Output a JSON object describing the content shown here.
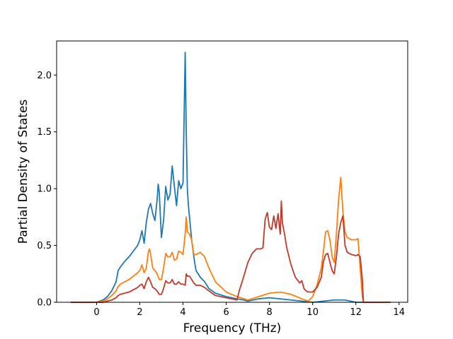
{
  "chart_data": {
    "type": "line",
    "xlabel": "Frequency (THz)",
    "ylabel": "Partial Density of States",
    "xlim": [
      -1.85,
      14.4
    ],
    "ylim": [
      0,
      2.3
    ],
    "xticks": [
      0,
      2,
      4,
      6,
      8,
      10,
      12,
      14
    ],
    "yticks": [
      0.0,
      0.5,
      1.0,
      1.5,
      2.0
    ],
    "ytick_labels": [
      "0.0",
      "0.5",
      "1.0",
      "1.5",
      "2.0"
    ],
    "grid": false,
    "legend": "none",
    "series": [
      {
        "color": "#1f77b4",
        "x": [
          -1.2,
          0.0,
          0.3,
          0.5,
          0.7,
          0.9,
          1.0,
          1.1,
          1.3,
          1.5,
          1.7,
          1.9,
          2.0,
          2.1,
          2.2,
          2.3,
          2.4,
          2.5,
          2.6,
          2.7,
          2.8,
          2.85,
          2.9,
          3.0,
          3.1,
          3.2,
          3.3,
          3.4,
          3.5,
          3.6,
          3.7,
          3.8,
          3.9,
          4.0,
          4.1,
          4.15,
          4.2,
          4.25,
          4.3,
          4.4,
          4.5,
          4.6,
          4.7,
          4.8,
          5.0,
          5.2,
          5.5,
          6.0,
          6.5,
          6.8,
          7.0,
          7.5,
          8.0,
          8.5,
          9.0,
          9.5,
          10.0,
          10.5,
          11.0,
          11.5,
          12.0,
          12.3,
          13.6
        ],
        "y": [
          0.0,
          0.0,
          0.02,
          0.05,
          0.1,
          0.18,
          0.28,
          0.31,
          0.36,
          0.4,
          0.45,
          0.5,
          0.55,
          0.63,
          0.52,
          0.7,
          0.82,
          0.87,
          0.78,
          0.72,
          0.9,
          1.04,
          0.97,
          0.57,
          0.72,
          1.02,
          0.9,
          0.95,
          1.2,
          1.02,
          0.85,
          1.07,
          1.0,
          1.05,
          2.2,
          1.5,
          1.0,
          0.85,
          0.75,
          0.55,
          0.4,
          0.28,
          0.25,
          0.22,
          0.18,
          0.12,
          0.08,
          0.05,
          0.03,
          0.02,
          0.01,
          0.03,
          0.04,
          0.03,
          0.02,
          0.01,
          0.0,
          0.01,
          0.02,
          0.02,
          0.0,
          0.0,
          0.0
        ]
      },
      {
        "color": "#ff7f0e",
        "x": [
          -1.2,
          0.0,
          0.3,
          0.5,
          0.7,
          0.9,
          1.0,
          1.1,
          1.3,
          1.5,
          1.7,
          1.9,
          2.0,
          2.1,
          2.2,
          2.3,
          2.4,
          2.45,
          2.5,
          2.6,
          2.7,
          2.8,
          2.9,
          3.0,
          3.1,
          3.2,
          3.3,
          3.4,
          3.5,
          3.6,
          3.7,
          3.8,
          3.9,
          4.0,
          4.1,
          4.15,
          4.2,
          4.3,
          4.4,
          4.5,
          4.6,
          4.7,
          4.8,
          5.0,
          5.2,
          5.5,
          6.0,
          6.5,
          7.0,
          7.5,
          8.0,
          8.5,
          9.0,
          9.5,
          9.8,
          10.0,
          10.2,
          10.4,
          10.5,
          10.6,
          10.7,
          10.8,
          10.9,
          11.0,
          11.1,
          11.2,
          11.3,
          11.4,
          11.5,
          11.6,
          11.7,
          11.8,
          12.0,
          12.1,
          12.2,
          12.3,
          12.35,
          13.6
        ],
        "y": [
          0.0,
          0.0,
          0.01,
          0.03,
          0.06,
          0.1,
          0.14,
          0.16,
          0.18,
          0.2,
          0.23,
          0.26,
          0.28,
          0.33,
          0.26,
          0.3,
          0.45,
          0.47,
          0.42,
          0.3,
          0.28,
          0.25,
          0.2,
          0.2,
          0.3,
          0.43,
          0.4,
          0.4,
          0.44,
          0.37,
          0.38,
          0.45,
          0.44,
          0.42,
          0.6,
          0.75,
          0.62,
          0.6,
          0.55,
          0.42,
          0.42,
          0.43,
          0.44,
          0.4,
          0.3,
          0.18,
          0.09,
          0.05,
          0.02,
          0.05,
          0.08,
          0.09,
          0.07,
          0.03,
          0.01,
          0.05,
          0.15,
          0.3,
          0.45,
          0.62,
          0.63,
          0.55,
          0.4,
          0.35,
          0.6,
          0.9,
          1.1,
          0.8,
          0.62,
          0.57,
          0.56,
          0.55,
          0.55,
          0.56,
          0.3,
          0.05,
          0.0,
          0.0
        ]
      },
      {
        "color": "#c0392b",
        "x": [
          -1.2,
          0.0,
          0.3,
          0.5,
          0.7,
          0.9,
          1.0,
          1.1,
          1.3,
          1.5,
          1.7,
          1.9,
          2.0,
          2.1,
          2.2,
          2.3,
          2.4,
          2.5,
          2.6,
          2.7,
          2.8,
          2.9,
          3.0,
          3.1,
          3.2,
          3.3,
          3.4,
          3.5,
          3.6,
          3.7,
          3.8,
          3.9,
          4.0,
          4.1,
          4.15,
          4.2,
          4.3,
          4.4,
          4.5,
          4.6,
          4.7,
          4.8,
          5.0,
          5.2,
          5.5,
          6.0,
          6.5,
          6.6,
          6.8,
          7.0,
          7.2,
          7.4,
          7.6,
          7.7,
          7.8,
          7.9,
          8.0,
          8.1,
          8.2,
          8.3,
          8.4,
          8.5,
          8.55,
          8.6,
          8.7,
          8.8,
          9.0,
          9.2,
          9.4,
          9.5,
          9.6,
          9.7,
          9.8,
          10.0,
          10.2,
          10.4,
          10.5,
          10.6,
          10.7,
          10.8,
          10.9,
          11.0,
          11.1,
          11.2,
          11.3,
          11.4,
          11.5,
          11.6,
          11.8,
          12.0,
          12.1,
          12.2,
          12.3,
          12.35,
          13.6
        ],
        "y": [
          0.0,
          0.0,
          0.0,
          0.01,
          0.02,
          0.04,
          0.06,
          0.07,
          0.08,
          0.09,
          0.11,
          0.13,
          0.15,
          0.16,
          0.12,
          0.18,
          0.22,
          0.18,
          0.13,
          0.12,
          0.1,
          0.07,
          0.07,
          0.12,
          0.19,
          0.17,
          0.17,
          0.2,
          0.16,
          0.16,
          0.18,
          0.16,
          0.16,
          0.15,
          0.25,
          0.23,
          0.23,
          0.2,
          0.17,
          0.15,
          0.15,
          0.15,
          0.13,
          0.1,
          0.06,
          0.04,
          0.02,
          0.1,
          0.22,
          0.35,
          0.43,
          0.47,
          0.47,
          0.48,
          0.73,
          0.79,
          0.66,
          0.64,
          0.76,
          0.65,
          0.78,
          0.6,
          0.89,
          0.7,
          0.6,
          0.48,
          0.33,
          0.22,
          0.17,
          0.19,
          0.12,
          0.1,
          0.09,
          0.09,
          0.13,
          0.22,
          0.36,
          0.42,
          0.43,
          0.35,
          0.28,
          0.25,
          0.4,
          0.6,
          0.7,
          0.76,
          0.5,
          0.44,
          0.42,
          0.41,
          0.42,
          0.4,
          0.2,
          0.0,
          0.0
        ]
      }
    ]
  }
}
